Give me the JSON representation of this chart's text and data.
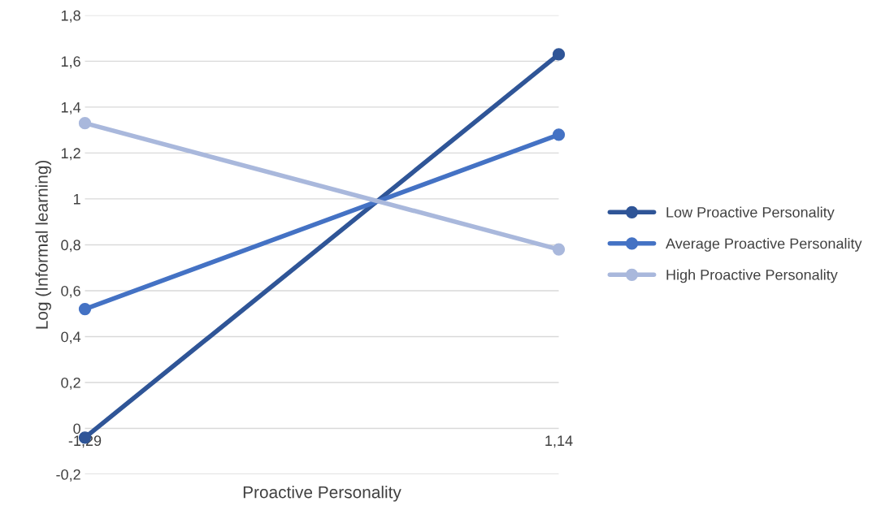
{
  "chart_data": {
    "type": "line",
    "xlabel": "Proactive Personality",
    "ylabel": "Log (Informal learning)",
    "x": [
      -1.29,
      1.14
    ],
    "xlim": [
      -1.29,
      1.14
    ],
    "xticks": [
      {
        "value": -1.29,
        "label": "-1,29"
      },
      {
        "value": 1.14,
        "label": "1,14"
      }
    ],
    "series": [
      {
        "name": "Low Proactive Personality",
        "color": "#2f5597",
        "values": [
          -0.04,
          1.63
        ]
      },
      {
        "name": "Average Proactive Personality",
        "color": "#4472c4",
        "values": [
          0.52,
          1.28
        ]
      },
      {
        "name": "High Proactive Personality",
        "color": "#a9b8dc",
        "values": [
          1.33,
          0.78
        ]
      }
    ],
    "ylim": [
      -0.2,
      1.8
    ],
    "yticks": [
      {
        "value": -0.2,
        "label": "-0,2"
      },
      0,
      {
        "value": 0.2,
        "label": "0,2"
      },
      {
        "value": 0.4,
        "label": "0,4"
      },
      {
        "value": 0.6,
        "label": "0,6"
      },
      {
        "value": 0.8,
        "label": "0,8"
      },
      1,
      {
        "value": 1.2,
        "label": "1,2"
      },
      {
        "value": 1.4,
        "label": "1,4"
      },
      {
        "value": 1.6,
        "label": "1,6"
      },
      {
        "value": 1.8,
        "label": "1,8"
      }
    ],
    "grid": "y",
    "legend": "right",
    "marker": "circle",
    "line_style": "solid"
  }
}
